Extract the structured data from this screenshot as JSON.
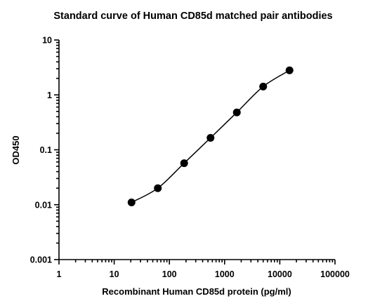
{
  "chart_data": {
    "type": "scatter",
    "title": "Standard curve of Human CD85d matched pair antibodies",
    "xlabel": "Recombinant Human CD85d protein (pg/ml)",
    "ylabel": "OD450",
    "x_scale": "log",
    "y_scale": "log",
    "xlim": [
      1,
      100000
    ],
    "ylim": [
      0.001,
      10
    ],
    "x_ticks": [
      {
        "value": 1,
        "label": "1"
      },
      {
        "value": 10,
        "label": "10"
      },
      {
        "value": 100,
        "label": "100"
      },
      {
        "value": 1000,
        "label": "1000"
      },
      {
        "value": 10000,
        "label": "10000"
      },
      {
        "value": 100000,
        "label": "100000"
      }
    ],
    "y_ticks": [
      {
        "value": 0.001,
        "label": "0.001"
      },
      {
        "value": 0.01,
        "label": "0.01"
      },
      {
        "value": 0.1,
        "label": "0.1"
      },
      {
        "value": 1,
        "label": "1"
      },
      {
        "value": 10,
        "label": "10"
      }
    ],
    "grid": false,
    "series": [
      {
        "points": [
          {
            "x": 20.6,
            "y": 0.011
          },
          {
            "x": 61.7,
            "y": 0.02
          },
          {
            "x": 185,
            "y": 0.057
          },
          {
            "x": 556,
            "y": 0.165
          },
          {
            "x": 1667,
            "y": 0.48
          },
          {
            "x": 5000,
            "y": 1.42
          },
          {
            "x": 15000,
            "y": 2.8
          }
        ],
        "fit_curve": true,
        "color": "#000000"
      }
    ]
  }
}
